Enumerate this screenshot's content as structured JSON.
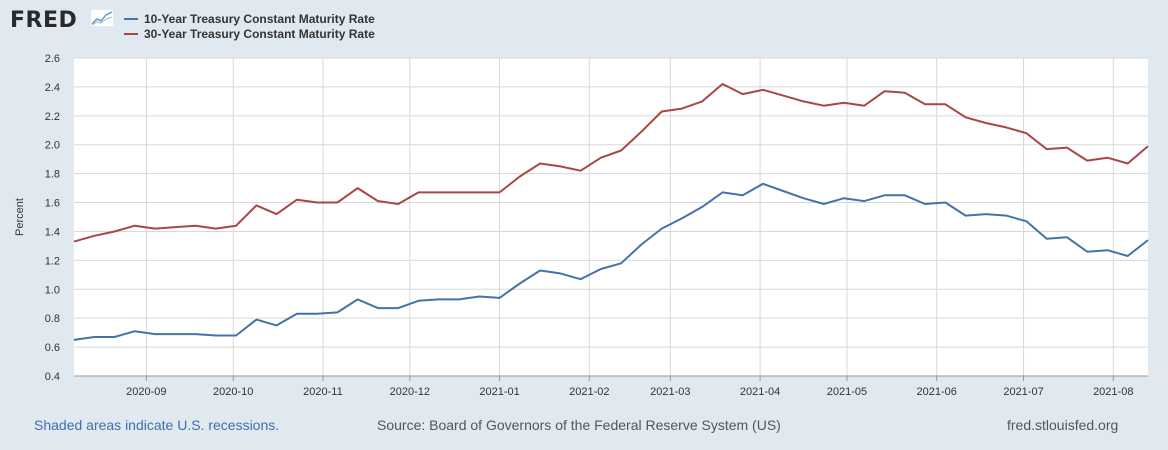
{
  "brand": "FRED",
  "colors": {
    "series1": "#4572a7",
    "series2": "#aa4643",
    "grid": "#d8d8d8",
    "plot_bg": "#ffffff",
    "page_bg": "#e1e9f0"
  },
  "legend": [
    {
      "label": "10-Year Treasury Constant Maturity Rate"
    },
    {
      "label": "30-Year Treasury Constant Maturity Rate"
    }
  ],
  "footer": {
    "recession_note": "Shaded areas indicate U.S. recessions.",
    "source": "Source: Board of Governors of the Federal Reserve System (US)",
    "site": "fred.stlouisfed.org"
  },
  "chart_data": {
    "type": "line",
    "ylabel": "Percent",
    "xlabel": "",
    "ylim": [
      0.4,
      2.6
    ],
    "yticks": [
      0.4,
      0.6,
      0.8,
      1.0,
      1.2,
      1.4,
      1.6,
      1.8,
      2.0,
      2.2,
      2.4,
      2.6
    ],
    "xlim": [
      "2020-08-07",
      "2021-08-13"
    ],
    "xticks": [
      "2020-09",
      "2020-10",
      "2020-11",
      "2020-12",
      "2021-01",
      "2021-02",
      "2021-03",
      "2021-04",
      "2021-05",
      "2021-06",
      "2021-07",
      "2021-08"
    ],
    "grid": true,
    "legend_position": "top-left",
    "x": [
      "2020-08-07",
      "2020-08-14",
      "2020-08-21",
      "2020-08-28",
      "2020-09-04",
      "2020-09-11",
      "2020-09-18",
      "2020-09-25",
      "2020-10-02",
      "2020-10-09",
      "2020-10-16",
      "2020-10-23",
      "2020-10-30",
      "2020-11-06",
      "2020-11-13",
      "2020-11-20",
      "2020-11-27",
      "2020-12-04",
      "2020-12-11",
      "2020-12-18",
      "2020-12-25",
      "2021-01-01",
      "2021-01-08",
      "2021-01-15",
      "2021-01-22",
      "2021-01-29",
      "2021-02-05",
      "2021-02-12",
      "2021-02-19",
      "2021-02-26",
      "2021-03-05",
      "2021-03-12",
      "2021-03-19",
      "2021-03-26",
      "2021-04-02",
      "2021-04-09",
      "2021-04-16",
      "2021-04-23",
      "2021-04-30",
      "2021-05-07",
      "2021-05-14",
      "2021-05-21",
      "2021-05-28",
      "2021-06-04",
      "2021-06-11",
      "2021-06-18",
      "2021-06-25",
      "2021-07-02",
      "2021-07-09",
      "2021-07-16",
      "2021-07-23",
      "2021-07-30",
      "2021-08-06",
      "2021-08-13"
    ],
    "series": [
      {
        "name": "10-Year Treasury Constant Maturity Rate",
        "values": [
          0.65,
          0.67,
          0.67,
          0.71,
          0.69,
          0.69,
          0.69,
          0.68,
          0.68,
          0.79,
          0.75,
          0.83,
          0.83,
          0.84,
          0.93,
          0.87,
          0.87,
          0.92,
          0.93,
          0.93,
          0.95,
          0.94,
          1.04,
          1.13,
          1.11,
          1.07,
          1.14,
          1.18,
          1.31,
          1.42,
          1.49,
          1.57,
          1.67,
          1.65,
          1.73,
          1.68,
          1.63,
          1.59,
          1.63,
          1.61,
          1.65,
          1.65,
          1.59,
          1.6,
          1.51,
          1.52,
          1.51,
          1.47,
          1.35,
          1.36,
          1.26,
          1.27,
          1.23,
          1.34
        ]
      },
      {
        "name": "30-Year Treasury Constant Maturity Rate",
        "values": [
          1.33,
          1.37,
          1.4,
          1.44,
          1.42,
          1.43,
          1.44,
          1.42,
          1.44,
          1.58,
          1.52,
          1.62,
          1.6,
          1.6,
          1.7,
          1.61,
          1.59,
          1.67,
          1.67,
          1.67,
          1.67,
          1.67,
          1.78,
          1.87,
          1.85,
          1.82,
          1.91,
          1.96,
          2.09,
          2.23,
          2.25,
          2.3,
          2.42,
          2.35,
          2.38,
          2.34,
          2.3,
          2.27,
          2.29,
          2.27,
          2.37,
          2.36,
          2.28,
          2.28,
          2.19,
          2.15,
          2.12,
          2.08,
          1.97,
          1.98,
          1.89,
          1.91,
          1.87,
          1.99
        ]
      }
    ]
  }
}
